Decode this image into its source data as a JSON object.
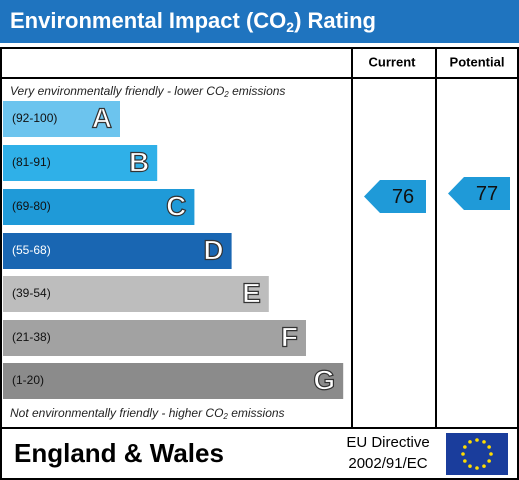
{
  "title": {
    "before": "Environmental Impact (CO",
    "sub": "2",
    "after": ") Rating"
  },
  "columns": {
    "current": "Current",
    "potential": "Potential"
  },
  "top_note": {
    "before": "Very environmentally friendly - lower CO",
    "sub": "2",
    "after": " emissions"
  },
  "bottom_note": {
    "before": "Not environmentally friendly - higher CO",
    "sub": "2",
    "after": " emissions"
  },
  "bands": [
    {
      "range": "(92-100)",
      "letter": "A",
      "color": "#6cc4ee"
    },
    {
      "range": "(81-91)",
      "letter": "B",
      "color": "#2fb0e8"
    },
    {
      "range": "(69-80)",
      "letter": "C",
      "color": "#1f9ad8"
    },
    {
      "range": "(55-68)",
      "letter": "D",
      "color": "#1966b2"
    },
    {
      "range": "(39-54)",
      "letter": "E",
      "color": "#bdbdbd"
    },
    {
      "range": "(21-38)",
      "letter": "F",
      "color": "#a2a2a2"
    },
    {
      "range": "(1-20)",
      "letter": "G",
      "color": "#8b8b8b"
    }
  ],
  "current": {
    "value": 76,
    "color": "#1f9ad8"
  },
  "potential": {
    "value": 77,
    "color": "#1f9ad8"
  },
  "footer": {
    "region": "England & Wales",
    "directive_line1": "EU Directive",
    "directive_line2": "2002/91/EC"
  }
}
